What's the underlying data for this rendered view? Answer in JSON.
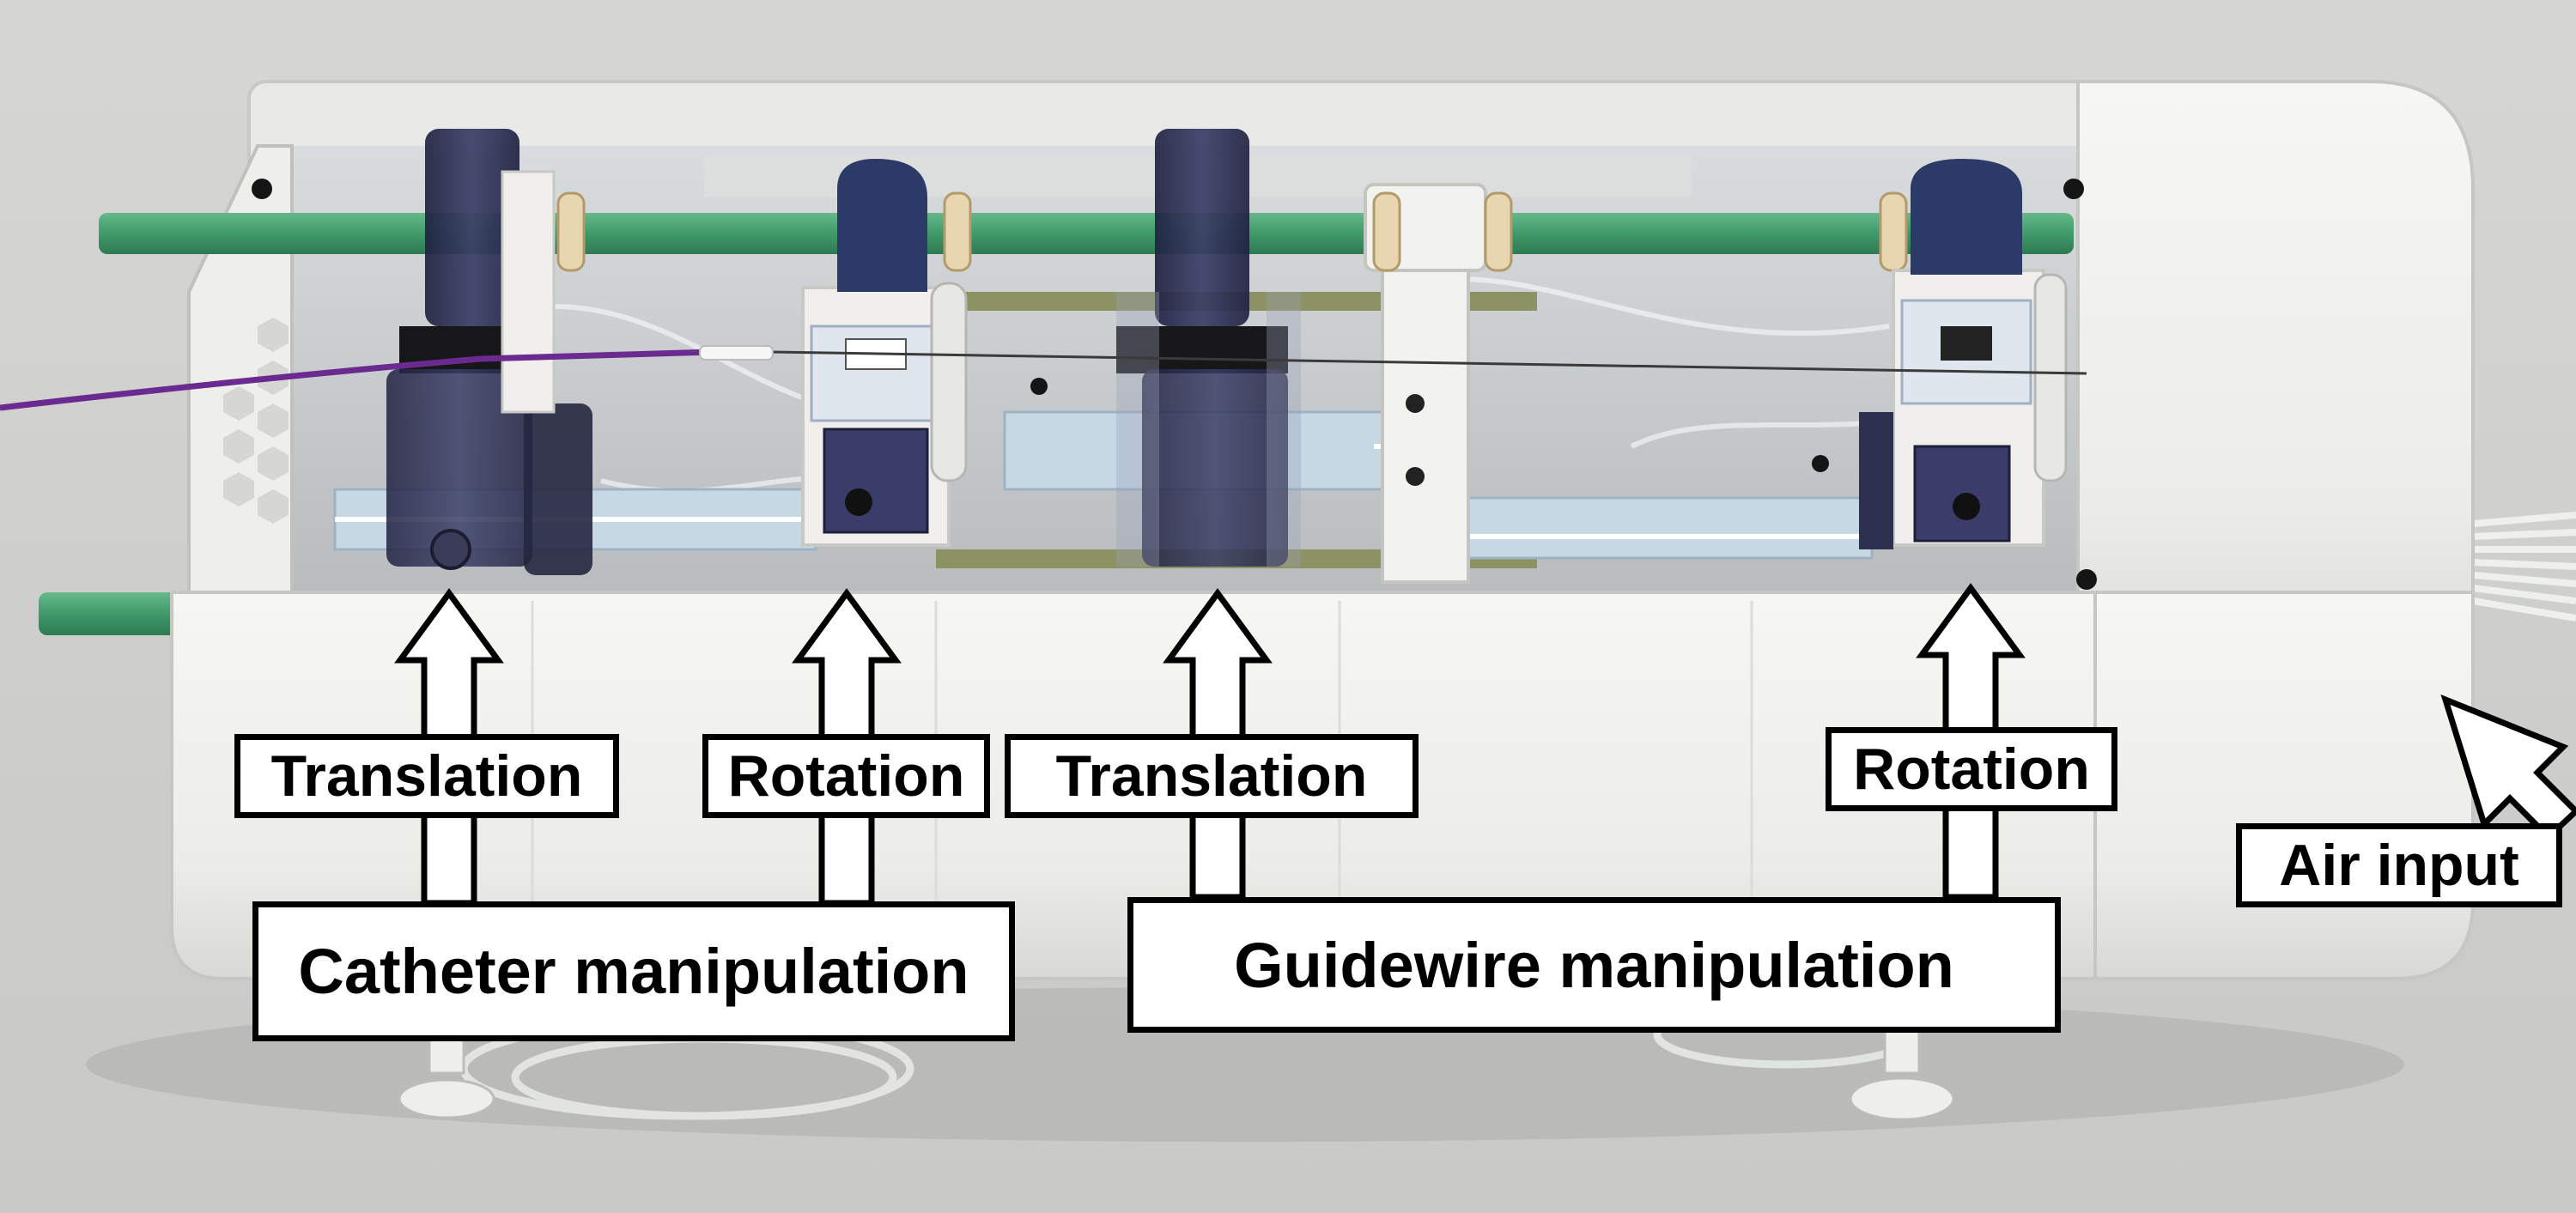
{
  "annotations": {
    "catheter_translation": "Translation",
    "catheter_rotation": "Rotation",
    "guidewire_translation": "Translation",
    "guidewire_rotation": "Rotation",
    "catheter_group": "Catheter manipulation",
    "guidewire_group": "Guidewire manipulation",
    "air_input": "Air input"
  },
  "colors": {
    "background": "#d4d4d2",
    "housing": "#f2f2ef",
    "green_rod": "#3f9a6a",
    "purple_wire": "#6b2a8f",
    "dark_clamp": "#2a2c4e"
  }
}
